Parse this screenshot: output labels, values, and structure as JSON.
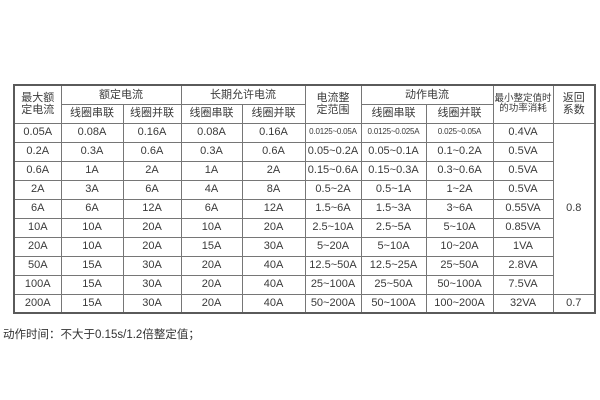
{
  "table": {
    "header": {
      "max_rated": {
        "line1": "最大额",
        "line2": "定电流"
      },
      "rated_current": "额定电流",
      "long_term_current": "长期允许电流",
      "setting_range": {
        "line1": "电流整",
        "line2": "定范围"
      },
      "operating_current": "动作电流",
      "min_power": {
        "line1": "最小整定值时",
        "line2": "的功率消耗"
      },
      "return_coef": {
        "line1": "返回",
        "line2": "系数"
      },
      "coil_series": "线圈串联",
      "coil_parallel": "线圈并联"
    },
    "rows": [
      [
        "0.05A",
        "0.08A",
        "0.16A",
        "0.08A",
        "0.16A",
        "0.0125~0.05A",
        "0.0125~0.025A",
        "0.025~0.05A",
        "0.4VA"
      ],
      [
        "0.2A",
        "0.3A",
        "0.6A",
        "0.3A",
        "0.6A",
        "0.05~0.2A",
        "0.05~0.1A",
        "0.1~0.2A",
        "0.5VA"
      ],
      [
        "0.6A",
        "1A",
        "2A",
        "1A",
        "2A",
        "0.15~0.6A",
        "0.15~0.3A",
        "0.3~0.6A",
        "0.5VA"
      ],
      [
        "2A",
        "3A",
        "6A",
        "4A",
        "8A",
        "0.5~2A",
        "0.5~1A",
        "1~2A",
        "0.5VA"
      ],
      [
        "6A",
        "6A",
        "12A",
        "6A",
        "12A",
        "1.5~6A",
        "1.5~3A",
        "3~6A",
        "0.55VA"
      ],
      [
        "10A",
        "10A",
        "20A",
        "10A",
        "20A",
        "2.5~10A",
        "2.5~5A",
        "5~10A",
        "0.85VA"
      ],
      [
        "20A",
        "10A",
        "20A",
        "15A",
        "30A",
        "5~20A",
        "5~10A",
        "10~20A",
        "1VA"
      ],
      [
        "50A",
        "15A",
        "30A",
        "20A",
        "40A",
        "12.5~50A",
        "12.5~25A",
        "25~50A",
        "2.8VA"
      ],
      [
        "100A",
        "15A",
        "30A",
        "20A",
        "40A",
        "25~100A",
        "25~50A",
        "50~100A",
        "7.5VA"
      ],
      [
        "200A",
        "15A",
        "30A",
        "20A",
        "40A",
        "50~200A",
        "50~100A",
        "100~200A",
        "32VA"
      ]
    ],
    "return_coefficient": {
      "rows_1_to_9": "0.8",
      "row_10": "0.7"
    }
  },
  "note": "动作时间：不大于0.15s/1.2倍整定值；",
  "colors": {
    "background": "#ffffff",
    "text": "#3a3a3a",
    "border_inner": "#767676",
    "border_outer": "#5a5a5a"
  }
}
